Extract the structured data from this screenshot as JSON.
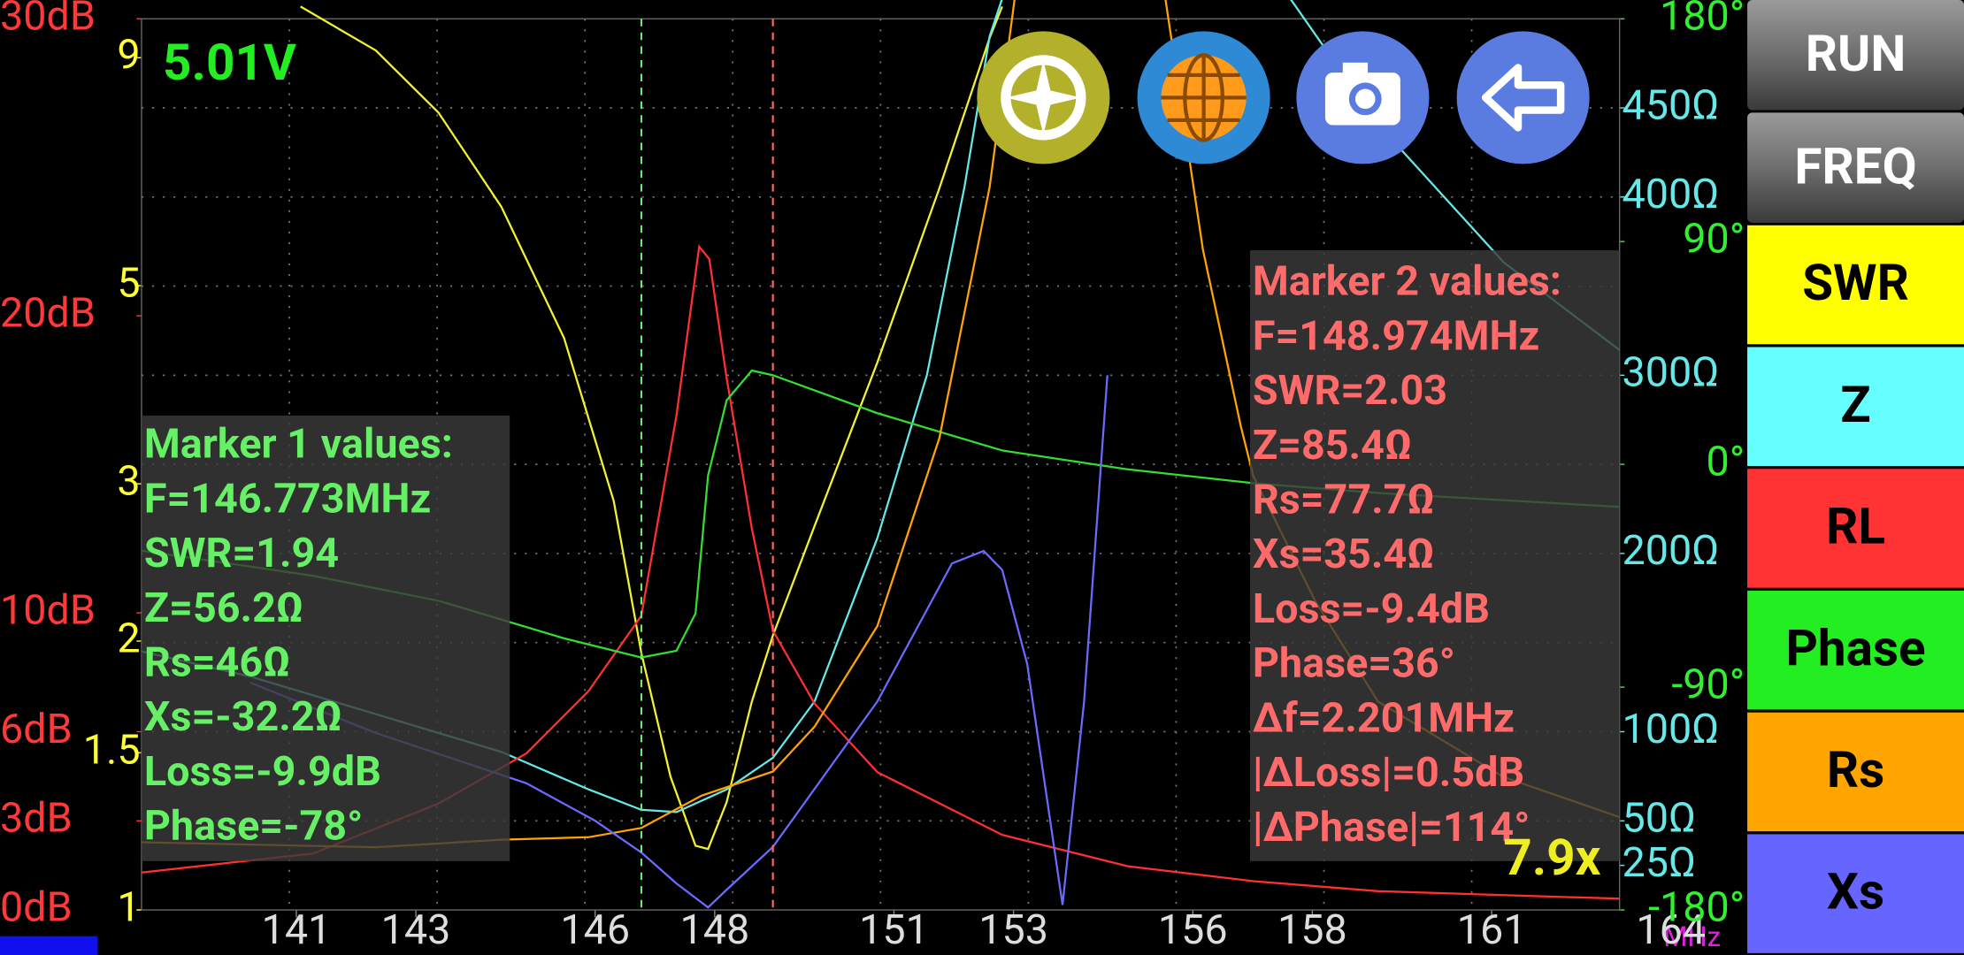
{
  "status": {
    "voltage": "5.01V",
    "zoom": "7.9x"
  },
  "chart_data": {
    "type": "line",
    "x_axis": {
      "unit": "MHz",
      "xlim": [
        138.41,
        163.14
      ],
      "xticks": [
        141,
        143,
        146,
        148,
        151,
        153,
        156,
        158,
        161,
        164
      ]
    },
    "axes": {
      "rl": {
        "color": "#ff3838",
        "ylim": [
          0,
          30
        ],
        "yticks": [
          {
            "value": 0,
            "label": "0dB"
          },
          {
            "value": 3,
            "label": "3dB"
          },
          {
            "value": 6,
            "label": "6dB"
          },
          {
            "value": 10,
            "label": "10dB"
          },
          {
            "value": 20,
            "label": "20dB"
          },
          {
            "value": 30,
            "label": "30dB"
          }
        ]
      },
      "swr": {
        "color": "#ffff33",
        "log_scale": true,
        "ylim": [
          1,
          9.95
        ],
        "yticks": [
          9,
          5,
          3,
          2,
          1.5,
          1
        ]
      },
      "z": {
        "color": "#66e8e8",
        "ylim": [
          0,
          500
        ],
        "yticks": [
          {
            "value": 25,
            "label": "25Ω"
          },
          {
            "value": 50,
            "label": "50Ω"
          },
          {
            "value": 100,
            "label": "100Ω"
          },
          {
            "value": 200,
            "label": "200Ω"
          },
          {
            "value": 300,
            "label": "300Ω"
          },
          {
            "value": 400,
            "label": "400Ω"
          },
          {
            "value": 450,
            "label": "450Ω"
          }
        ]
      },
      "phase": {
        "color": "#33ee33",
        "ylim": [
          -180,
          180
        ],
        "yticks": [
          {
            "value": 180,
            "label": "180°"
          },
          {
            "value": 90,
            "label": "90°"
          },
          {
            "value": 0,
            "label": "0°"
          },
          {
            "value": -90,
            "label": "-90°"
          },
          {
            "value": -180,
            "label": "-180°"
          }
        ]
      }
    },
    "grid": true,
    "series": [
      {
        "name": "SWR",
        "color": "#ffff00",
        "line_color": "#f2f230",
        "axis": "swr",
        "x": [
          141.07,
          142.33,
          143.38,
          144.43,
          145.48,
          146.31,
          146.773,
          147.26,
          147.68,
          147.89,
          148.2,
          148.62,
          148.974,
          149.67,
          150.72,
          151.76,
          152.6,
          152.81
        ],
        "values": [
          10.27,
          9.17,
          7.81,
          6.13,
          4.37,
          2.87,
          1.94,
          1.41,
          1.18,
          1.17,
          1.32,
          1.71,
          2.03,
          2.69,
          4.1,
          6.43,
          9.47,
          10.27
        ]
      },
      {
        "name": "Z",
        "color": "#66ffff",
        "line_color": "#66e8e8",
        "axis": "z",
        "x": [
          138.41,
          140.23,
          142.33,
          144.43,
          145.89,
          146.773,
          147.36,
          148.2,
          148.974,
          149.67,
          150.72,
          151.55,
          152.18,
          152.6,
          152.81,
          156,
          157.63,
          159.1,
          161.2,
          163.14
        ],
        "values": [
          145.1,
          131.0,
          109.9,
          88.7,
          67.6,
          56.2,
          54.9,
          67.6,
          85.4,
          116.9,
          208.5,
          300,
          405.6,
          490.1,
          511.3,
          null,
          511.3,
          440.8,
          363.4,
          314.1
        ]
      },
      {
        "name": "RL",
        "color": "#ff3333",
        "line_color": "#ff3030",
        "axis": "rl",
        "x": [
          138.41,
          141.28,
          143.38,
          144.85,
          145.89,
          146.773,
          147.36,
          147.74,
          147.91,
          148.2,
          148.62,
          148.974,
          149.67,
          150.72,
          152.81,
          154.91,
          157.01,
          159.1,
          163.14
        ],
        "values": [
          1.26,
          1.9,
          3.58,
          5.27,
          7.37,
          9.9,
          16.65,
          22.33,
          21.91,
          17.91,
          12.85,
          9.4,
          6.95,
          4.64,
          2.53,
          1.47,
          0.97,
          0.63,
          0.38
        ]
      },
      {
        "name": "Phase",
        "color": "#22ee22",
        "line_color": "#33dd33",
        "axis": "phase",
        "x": [
          138.41,
          141.28,
          143.38,
          145.48,
          146.773,
          147.36,
          147.68,
          147.89,
          148.2,
          148.62,
          148.974,
          150.72,
          152.81,
          154.91,
          157.01,
          159.1,
          163.14
        ],
        "values": [
          -34.9,
          -45.0,
          -55.1,
          -70.3,
          -78,
          -75.3,
          -60.2,
          -4.5,
          25.8,
          37.9,
          36,
          20.7,
          5.6,
          -2.0,
          -7.6,
          -11.6,
          -17.2
        ]
      },
      {
        "name": "Rs",
        "color": "#ffa500",
        "line_color": "#ffa500",
        "axis": "z",
        "x": [
          138.41,
          142.33,
          144.43,
          145.89,
          146.773,
          147.78,
          148.974,
          149.67,
          150.72,
          151.76,
          152.6,
          153.02,
          155,
          155.54,
          156.17,
          156.8,
          157.01,
          158.05,
          159.1,
          161.2,
          163.14
        ],
        "values": [
          38.0,
          35.2,
          39.4,
          40.8,
          46,
          64.1,
          77.7,
          102.8,
          159.2,
          264.8,
          405.6,
          511.3,
          null,
          511.3,
          370.4,
          271.8,
          243.7,
          173.2,
          116.9,
          74.6,
          52.1
        ]
      },
      {
        "name": "Xs",
        "color": "#6666ff",
        "line_color": "#6a6aff",
        "axis": "z",
        "x": [
          140.23,
          142.33,
          144.85,
          146.0,
          146.773,
          147.36,
          147.89,
          148.2,
          148.974,
          150.72,
          151.97,
          152.5,
          152.81,
          153.23,
          153.82,
          154.18,
          154.57
        ],
        "values": [
          127.5,
          99.3,
          71.1,
          50,
          32.2,
          14.8,
          1.4,
          11.3,
          35.4,
          116.9,
          194.4,
          201.4,
          190.8,
          138.0,
          2.8,
          116.9,
          300
        ]
      }
    ],
    "markers": [
      {
        "color": "#66f066",
        "frequency": 146.773,
        "lines": [
          "Marker 1 values:",
          "F=146.773MHz",
          "SWR=1.94",
          "Z=56.2Ω",
          "Rs=46Ω",
          "Xs=-32.2Ω",
          "Loss=-9.9dB",
          "Phase=-78°"
        ]
      },
      {
        "color": "#ff6a6a",
        "frequency": 148.974,
        "lines": [
          "Marker 2 values:",
          "F=148.974MHz",
          "SWR=2.03",
          "Z=85.4Ω",
          "Rs=77.7Ω",
          "Xs=35.4Ω",
          "Loss=-9.4dB",
          "Phase=36°",
          "Δf=2.201MHz",
          "|ΔLoss|=0.5dB",
          "|ΔPhase|=114°"
        ]
      }
    ]
  },
  "buttons": [
    "RUN",
    "FREQ"
  ]
}
